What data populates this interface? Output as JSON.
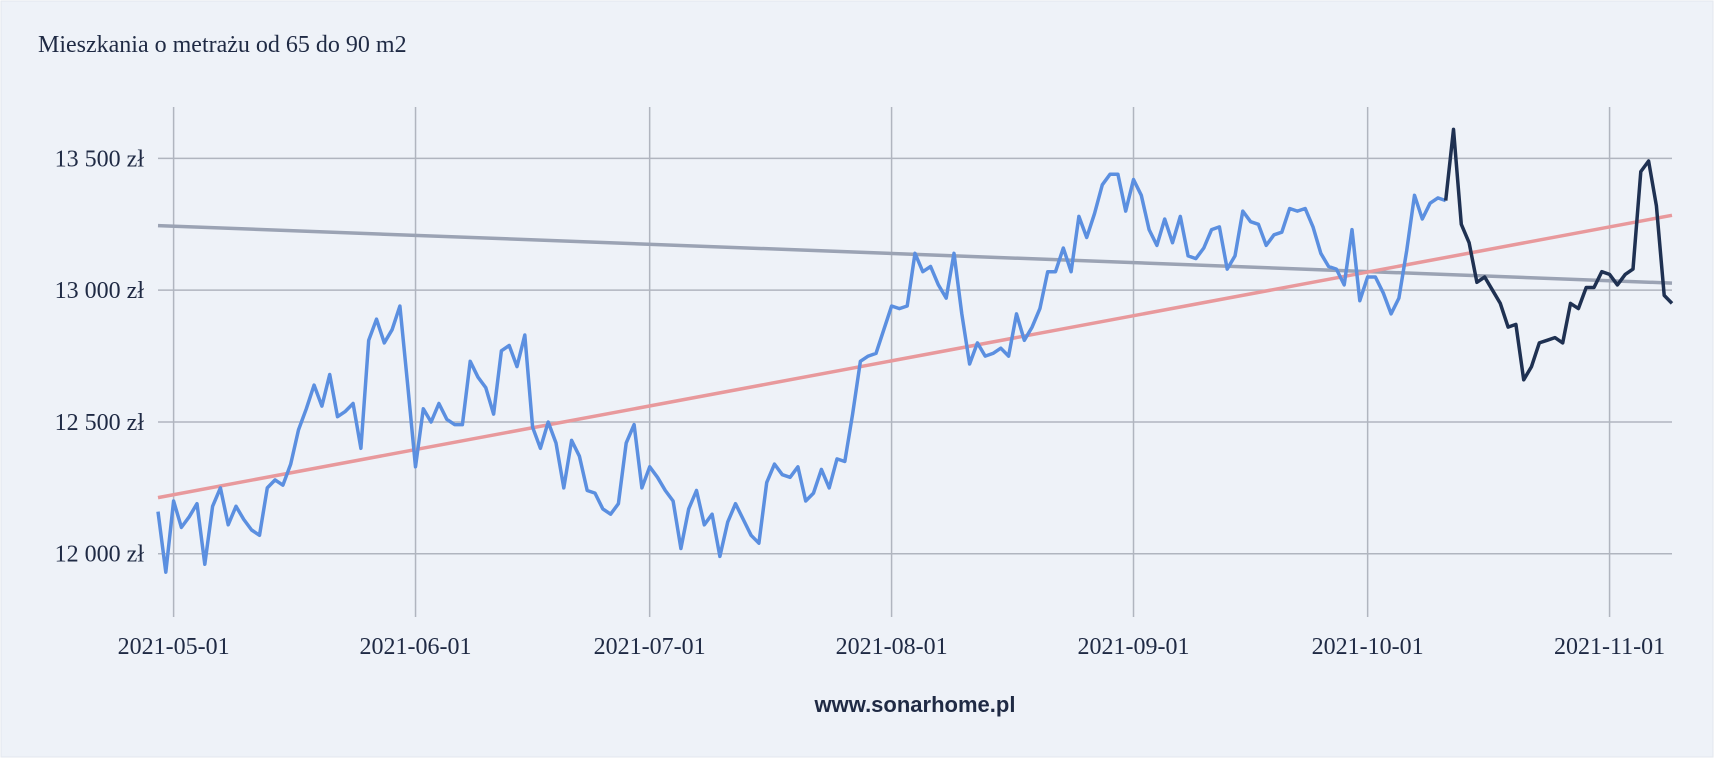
{
  "chart_data": {
    "type": "line",
    "title": "Mieszkania o metrażu od 65 do 90 m2",
    "footer": "www.sonarhome.pl",
    "grid": true,
    "xlim": [
      "2021-04-29",
      "2021-11-09"
    ],
    "xticks": [
      "2021-05-01",
      "2021-06-01",
      "2021-07-01",
      "2021-08-01",
      "2021-09-01",
      "2021-10-01",
      "2021-11-01"
    ],
    "ylim": [
      11760,
      13695
    ],
    "yticks": [
      {
        "value": 12000,
        "label": "12 000 zł"
      },
      {
        "value": 12500,
        "label": "12 500 zł"
      },
      {
        "value": 13000,
        "label": "13 000 zł"
      },
      {
        "value": 13500,
        "label": "13 500 zł"
      }
    ],
    "series": [
      {
        "color": "#9ba3b4",
        "x": [
          "2021-04-29",
          "2021-11-09"
        ],
        "values": [
          13245,
          13027
        ]
      },
      {
        "color": "#e8999c",
        "x": [
          "2021-04-29",
          "2021-11-09"
        ],
        "values": [
          12213,
          13284
        ]
      },
      {
        "color": "#5b8fe0",
        "x": [
          "2021-04-29",
          "2021-04-30",
          "2021-05-01",
          "2021-05-02",
          "2021-05-03",
          "2021-05-04",
          "2021-05-05",
          "2021-05-06",
          "2021-05-07",
          "2021-05-08",
          "2021-05-09",
          "2021-05-10",
          "2021-05-11",
          "2021-05-12",
          "2021-05-13",
          "2021-05-14",
          "2021-05-15",
          "2021-05-16",
          "2021-05-17",
          "2021-05-18",
          "2021-05-19",
          "2021-05-20",
          "2021-05-21",
          "2021-05-22",
          "2021-05-23",
          "2021-05-24",
          "2021-05-25",
          "2021-05-26",
          "2021-05-27",
          "2021-05-28",
          "2021-05-29",
          "2021-05-30",
          "2021-05-31",
          "2021-06-01",
          "2021-06-02",
          "2021-06-03",
          "2021-06-04",
          "2021-06-05",
          "2021-06-06",
          "2021-06-07",
          "2021-06-08",
          "2021-06-09",
          "2021-06-10",
          "2021-06-11",
          "2021-06-12",
          "2021-06-13",
          "2021-06-14",
          "2021-06-15",
          "2021-06-16",
          "2021-06-17",
          "2021-06-18",
          "2021-06-19",
          "2021-06-20",
          "2021-06-21",
          "2021-06-22",
          "2021-06-23",
          "2021-06-24",
          "2021-06-25",
          "2021-06-26",
          "2021-06-27",
          "2021-06-28",
          "2021-06-29",
          "2021-06-30",
          "2021-07-01",
          "2021-07-02",
          "2021-07-03",
          "2021-07-04",
          "2021-07-05",
          "2021-07-06",
          "2021-07-07",
          "2021-07-08",
          "2021-07-09",
          "2021-07-10",
          "2021-07-11",
          "2021-07-12",
          "2021-07-13",
          "2021-07-14",
          "2021-07-15",
          "2021-07-16",
          "2021-07-17",
          "2021-07-18",
          "2021-07-19",
          "2021-07-20",
          "2021-07-21",
          "2021-07-22",
          "2021-07-23",
          "2021-07-24",
          "2021-07-25",
          "2021-07-26",
          "2021-07-27",
          "2021-07-28",
          "2021-07-29",
          "2021-07-30",
          "2021-07-31",
          "2021-08-01",
          "2021-08-02",
          "2021-08-03",
          "2021-08-04",
          "2021-08-05",
          "2021-08-06",
          "2021-08-07",
          "2021-08-08",
          "2021-08-09",
          "2021-08-10",
          "2021-08-11",
          "2021-08-12",
          "2021-08-13",
          "2021-08-14",
          "2021-08-15",
          "2021-08-16",
          "2021-08-17",
          "2021-08-18",
          "2021-08-19",
          "2021-08-20",
          "2021-08-21",
          "2021-08-22",
          "2021-08-23",
          "2021-08-24",
          "2021-08-25",
          "2021-08-26",
          "2021-08-27",
          "2021-08-28",
          "2021-08-29",
          "2021-08-30",
          "2021-08-31",
          "2021-09-01",
          "2021-09-02",
          "2021-09-03",
          "2021-09-04",
          "2021-09-05",
          "2021-09-06",
          "2021-09-07",
          "2021-09-08",
          "2021-09-09",
          "2021-09-10",
          "2021-09-11",
          "2021-09-12",
          "2021-09-13",
          "2021-09-14",
          "2021-09-15",
          "2021-09-16",
          "2021-09-17",
          "2021-09-18",
          "2021-09-19",
          "2021-09-20",
          "2021-09-21",
          "2021-09-22",
          "2021-09-23",
          "2021-09-24",
          "2021-09-25",
          "2021-09-26",
          "2021-09-27",
          "2021-09-28",
          "2021-09-29",
          "2021-09-30",
          "2021-10-01",
          "2021-10-02",
          "2021-10-03",
          "2021-10-04",
          "2021-10-05",
          "2021-10-06",
          "2021-10-07",
          "2021-10-08",
          "2021-10-09",
          "2021-10-10",
          "2021-10-11"
        ],
        "values": [
          12160,
          11930,
          12200,
          12100,
          12140,
          12190,
          11960,
          12180,
          12250,
          12110,
          12180,
          12130,
          12090,
          12070,
          12250,
          12280,
          12260,
          12340,
          12470,
          12550,
          12640,
          12560,
          12680,
          12520,
          12540,
          12570,
          12400,
          12810,
          12890,
          12800,
          12850,
          12940,
          12640,
          12330,
          12550,
          12500,
          12570,
          12510,
          12490,
          12490,
          12730,
          12670,
          12630,
          12530,
          12770,
          12790,
          12710,
          12830,
          12480,
          12400,
          12500,
          12420,
          12250,
          12430,
          12370,
          12240,
          12230,
          12170,
          12150,
          12190,
          12420,
          12490,
          12250,
          12330,
          12290,
          12240,
          12200,
          12020,
          12170,
          12240,
          12110,
          12150,
          11990,
          12120,
          12190,
          12130,
          12070,
          12040,
          12270,
          12340,
          12300,
          12290,
          12330,
          12200,
          12230,
          12320,
          12250,
          12360,
          12350,
          12530,
          12730,
          12750,
          12760,
          12850,
          12940,
          12930,
          12940,
          13140,
          13070,
          13090,
          13020,
          12970,
          13140,
          12910,
          12720,
          12800,
          12750,
          12760,
          12780,
          12750,
          12910,
          12810,
          12860,
          12930,
          13070,
          13070,
          13160,
          13070,
          13280,
          13200,
          13290,
          13400,
          13440,
          13440,
          13300,
          13420,
          13360,
          13230,
          13170,
          13270,
          13180,
          13280,
          13130,
          13120,
          13160,
          13230,
          13240,
          13080,
          13130,
          13300,
          13260,
          13250,
          13170,
          13210,
          13220,
          13310,
          13300,
          13310,
          13240,
          13140,
          13090,
          13080,
          13020,
          13230,
          12960,
          13050,
          13050,
          12990,
          12910,
          12970,
          13150,
          13360,
          13270,
          13330,
          13350,
          13340
        ]
      },
      {
        "color": "#1f3152",
        "x": [
          "2021-10-11",
          "2021-10-12",
          "2021-10-13",
          "2021-10-14",
          "2021-10-15",
          "2021-10-16",
          "2021-10-17",
          "2021-10-18",
          "2021-10-19",
          "2021-10-20",
          "2021-10-21",
          "2021-10-22",
          "2021-10-23",
          "2021-10-24",
          "2021-10-25",
          "2021-10-26",
          "2021-10-27",
          "2021-10-28",
          "2021-10-29",
          "2021-10-30",
          "2021-10-31",
          "2021-11-01",
          "2021-11-02",
          "2021-11-03",
          "2021-11-04",
          "2021-11-05",
          "2021-11-06",
          "2021-11-07",
          "2021-11-08",
          "2021-11-09"
        ],
        "values": [
          13340,
          13610,
          13250,
          13180,
          13030,
          13050,
          13000,
          12950,
          12860,
          12870,
          12660,
          12710,
          12800,
          12810,
          12820,
          12800,
          12950,
          12930,
          13010,
          13010,
          13070,
          13060,
          13020,
          13060,
          13080,
          13450,
          13490,
          13320,
          12980,
          12950
        ]
      }
    ]
  }
}
